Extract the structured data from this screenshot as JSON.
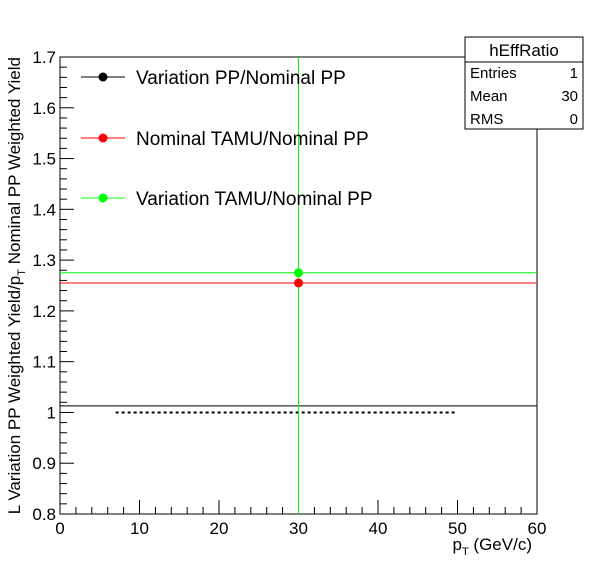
{
  "chart_data": {
    "type": "scatter",
    "xlabel": "p",
    "xlabel_sub": "T",
    "xlabel_suffix": " (GeV/c)",
    "ylabel_main": "L Variation PP Weighted Yield/p",
    "ylabel_sub": "T",
    "ylabel_suffix": " Nominal PP Weighted Yield",
    "xlim": [
      0,
      60
    ],
    "ylim": [
      0.8,
      1.7
    ],
    "xticks": [
      "0",
      "10",
      "20",
      "30",
      "40",
      "50",
      "60"
    ],
    "yticks": [
      "0.8",
      "0.9",
      "1",
      "1.1",
      "1.2",
      "1.3",
      "1.4",
      "1.5",
      "1.6",
      "1.7"
    ],
    "series": [
      {
        "name": "Variation PP/Nominal PP",
        "color": "#000000",
        "x": 30,
        "y": 1.013,
        "yerr": 0
      },
      {
        "name": "Nominal TAMU/Nominal PP",
        "color": "#ff0000",
        "x": 30,
        "y": 1.255,
        "yerr": 0
      },
      {
        "name": "Variation TAMU/Nominal PP",
        "color": "#00ff00",
        "x": 30,
        "y": 1.275,
        "yerr": 0.9
      }
    ],
    "reference_line": {
      "y": 1.0,
      "x_start": 7,
      "x_end": 50,
      "style": "dotted"
    },
    "legend_position": "top-left",
    "stats_box": {
      "title": "hEffRatio",
      "rows": [
        {
          "label": "Entries",
          "value": "1"
        },
        {
          "label": "Mean",
          "value": "30"
        },
        {
          "label": "RMS",
          "value": "0"
        }
      ]
    }
  }
}
